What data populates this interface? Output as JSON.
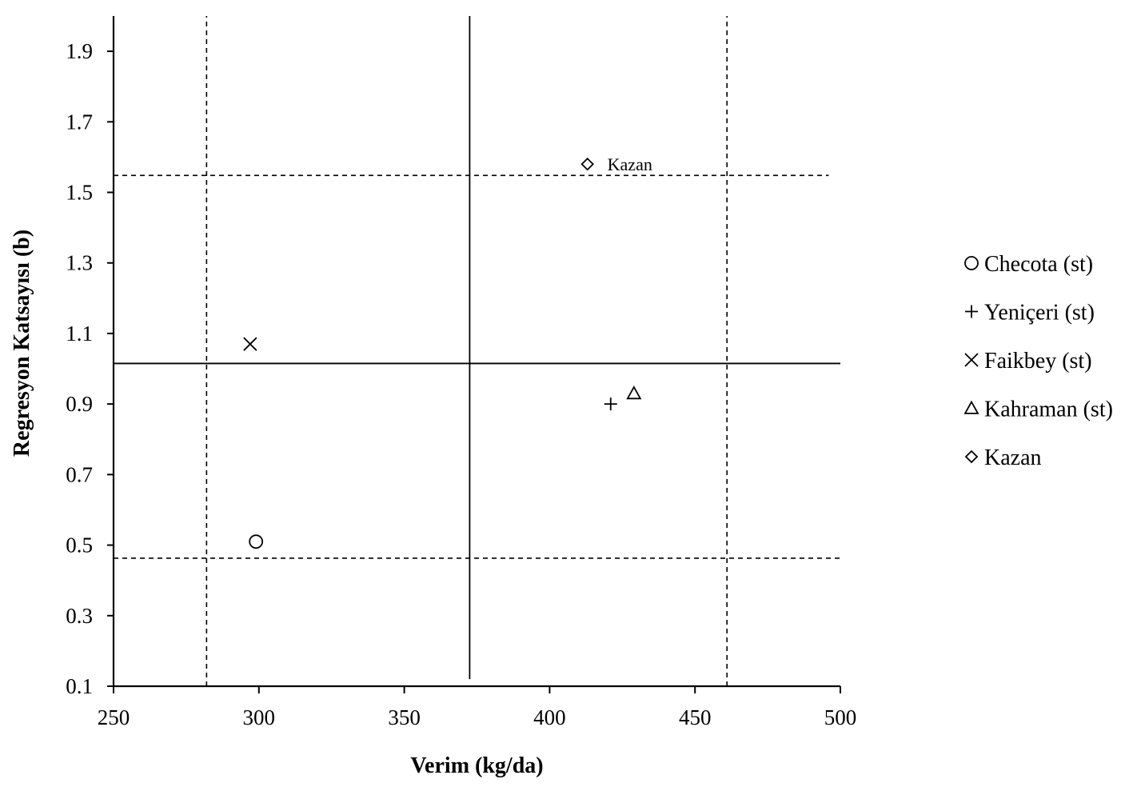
{
  "chart_data": {
    "type": "scatter",
    "xlabel": "Verim (kg/da)",
    "ylabel": "Regresyon Katsayısı (b)",
    "xlim": [
      250,
      500
    ],
    "ylim": [
      0.1,
      2.0
    ],
    "xticks": [
      250,
      300,
      350,
      400,
      450,
      500
    ],
    "yticks": [
      0.1,
      0.3,
      0.5,
      0.7,
      0.9,
      1.1,
      1.3,
      1.5,
      1.7,
      1.9
    ],
    "xtick_labels": [
      "250",
      "300",
      "350",
      "400",
      "450",
      "500"
    ],
    "ytick_labels": [
      "0.1",
      "0.3",
      "0.5",
      "0.7",
      "0.9",
      "1.1",
      "1.3",
      "1.5",
      "1.7",
      "1.9"
    ],
    "grid": false,
    "legend_position": "right",
    "series": [
      {
        "name": "Checota (st)",
        "marker": "circle",
        "points": [
          [
            299,
            0.51
          ]
        ]
      },
      {
        "name": "Yeniçeri (st)",
        "marker": "plus",
        "points": [
          [
            421,
            0.9
          ]
        ]
      },
      {
        "name": "Faikbey (st)",
        "marker": "cross",
        "points": [
          [
            297,
            1.07
          ]
        ]
      },
      {
        "name": "Kahraman (st)",
        "marker": "triangle",
        "points": [
          [
            429,
            0.93
          ]
        ]
      },
      {
        "name": "Kazan",
        "marker": "diamond",
        "points": [
          [
            413,
            1.58
          ]
        ]
      }
    ],
    "reference_lines": [
      {
        "orientation": "vertical",
        "value": 372.5,
        "style": "solid",
        "range": [
          0.12,
          2.0
        ]
      },
      {
        "orientation": "horizontal",
        "value": 1.015,
        "style": "solid",
        "range": [
          250,
          500
        ]
      },
      {
        "orientation": "vertical",
        "value": 282,
        "style": "dashed",
        "range": [
          0.1,
          2.0
        ]
      },
      {
        "orientation": "vertical",
        "value": 461,
        "style": "dashed",
        "range": [
          0.1,
          2.0
        ]
      },
      {
        "orientation": "horizontal",
        "value": 1.548,
        "style": "dashed",
        "range": [
          250,
          496
        ]
      },
      {
        "orientation": "horizontal",
        "value": 0.463,
        "style": "dashed",
        "range": [
          250,
          500
        ]
      }
    ],
    "annotations": [
      {
        "text": "Kazan",
        "x": 413,
        "y": 1.58
      }
    ]
  }
}
